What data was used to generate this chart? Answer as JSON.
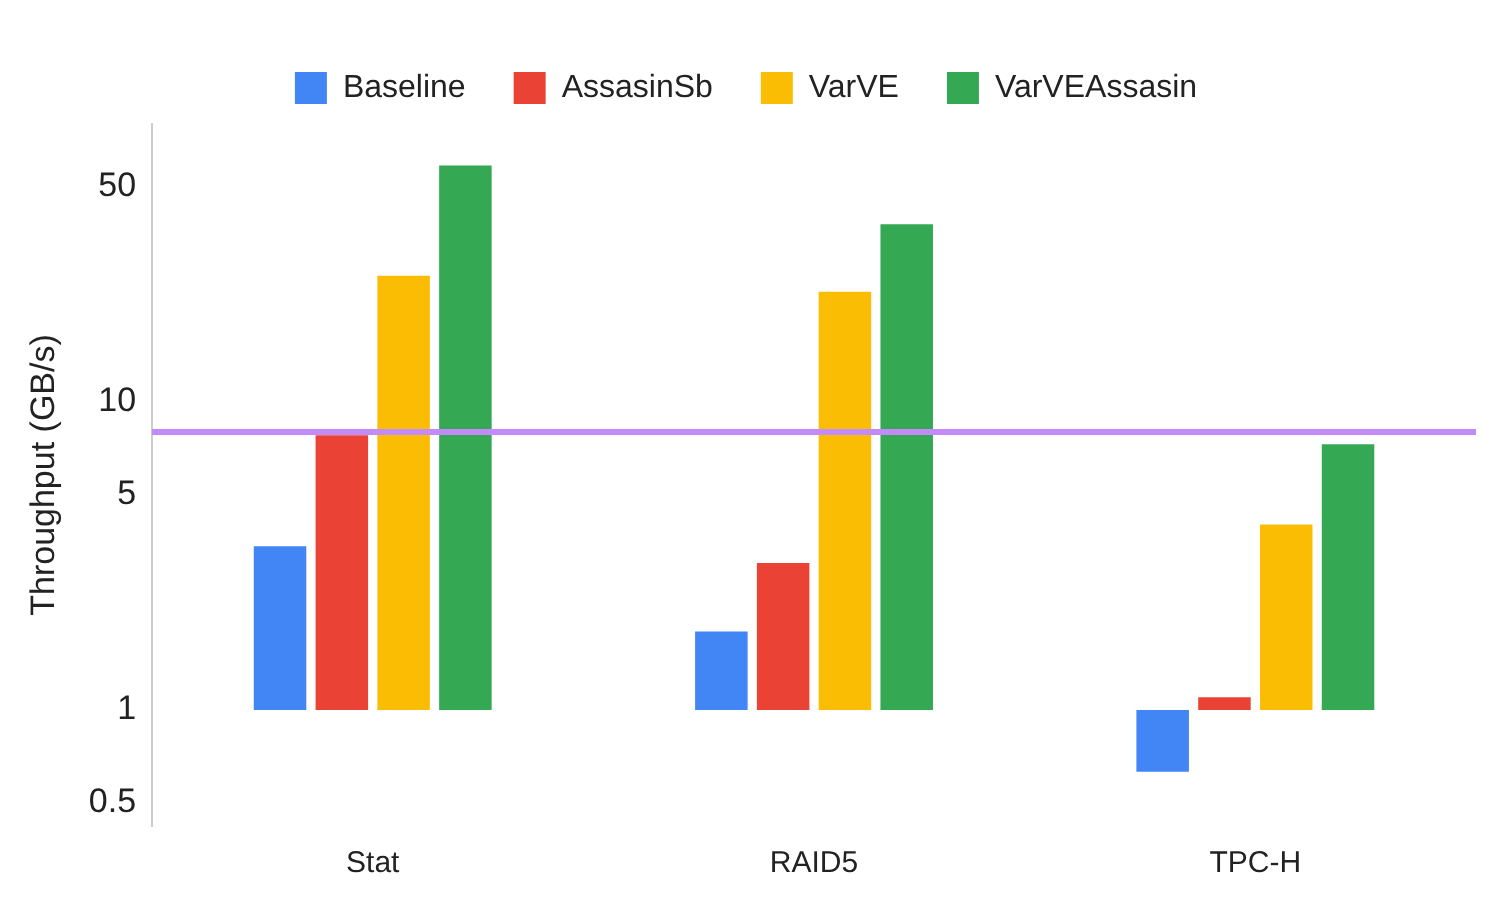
{
  "chart_data": {
    "type": "bar",
    "ylabel": "Throughput (GB/s)",
    "categories": [
      "Stat",
      "RAID5",
      "TPC-H"
    ],
    "series": [
      {
        "name": "Baseline",
        "color": "#4285f4",
        "base": [
          1,
          1,
          1
        ],
        "values": [
          2.4,
          0.8,
          -0.37
        ]
      },
      {
        "name": "AssasinSb",
        "color": "#ea4335",
        "base": [
          1,
          1,
          1
        ],
        "values": [
          6.8,
          2.0,
          0.1
        ]
      },
      {
        "name": "VarVE",
        "color": "#fbbc04",
        "base": [
          1,
          1,
          1
        ],
        "values": [
          24.7,
          21.8,
          3.0
        ]
      },
      {
        "name": "VarVEAssasin",
        "color": "#34a853",
        "base": [
          1,
          1,
          1
        ],
        "values": [
          57.7,
          36.8,
          6.3
        ]
      }
    ],
    "log": true,
    "ylim": [
      0.42,
      80
    ],
    "yticks": [
      0.5,
      1,
      5,
      10,
      50
    ],
    "legend": "top",
    "grid": false,
    "ref_lines": [
      {
        "axis": "y",
        "value": 8,
        "color": "#c58af9"
      }
    ]
  }
}
